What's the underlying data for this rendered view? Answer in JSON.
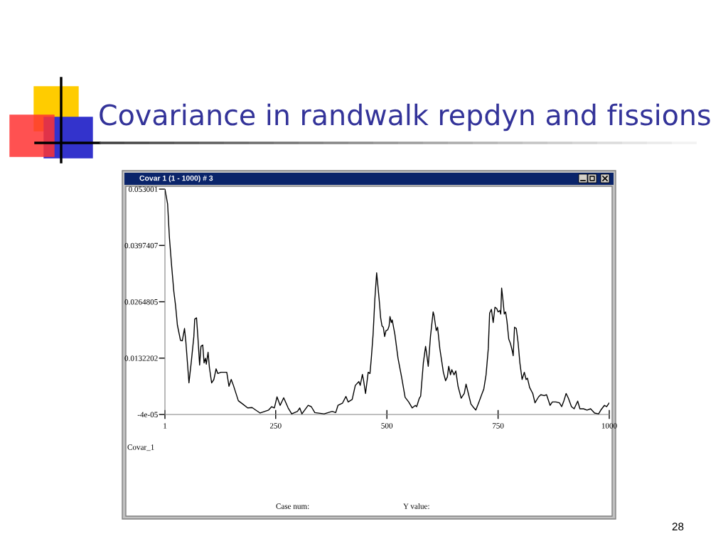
{
  "chart_data": {
    "type": "line",
    "title": "Covariance in randwalk repdyn and fissions",
    "subtitle": "Covar 1 (1 - 1000) # 3",
    "annotations": [
      "Case num:",
      "Y value:",
      "28"
    ],
    "series": [
      {
        "name": "Covar_1",
        "color": "#000000",
        "x": [
          1,
          7,
          11,
          16,
          21,
          25,
          29,
          36,
          40,
          45,
          48,
          55,
          60,
          66,
          68,
          72,
          75,
          79,
          82,
          86,
          89,
          92,
          94,
          98,
          101,
          106,
          111,
          116,
          120,
          127,
          140,
          145,
          150,
          155,
          166,
          176,
          187,
          197,
          205,
          215,
          234,
          241,
          247,
          253,
          260,
          268,
          278,
          286,
          299,
          304,
          309,
          323,
          330,
          338,
          359,
          377,
          385,
          390,
          400,
          408,
          413,
          422,
          429,
          437,
          440,
          445,
          448,
          452,
          458,
          462,
          465,
          469,
          473,
          477,
          479,
          483,
          486,
          489,
          492,
          495,
          498,
          502,
          505,
          507,
          510,
          512,
          518,
          525,
          533,
          541,
          549,
          557,
          564,
          567,
          573,
          576,
          582,
          587,
          589,
          593,
          598,
          604,
          606,
          611,
          614,
          619,
          627,
          632,
          636,
          639,
          643,
          646,
          651,
          655,
          660,
          667,
          674,
          678,
          682,
          689,
          695,
          700,
          707,
          713,
          718,
          723,
          728,
          731,
          735,
          739,
          743,
          747,
          750,
          754,
          756,
          758,
          761,
          764,
          767,
          770,
          774,
          778,
          782,
          784,
          787,
          791,
          795,
          799,
          804,
          809,
          813,
          816,
          821,
          828,
          833,
          841,
          846,
          854,
          859,
          867,
          872,
          880,
          888,
          893,
          898,
          903,
          908,
          915,
          921,
          929,
          934,
          942,
          950,
          958,
          967,
          976,
          981,
          989,
          994,
          1000
        ],
        "values": [
          0.053,
          0.0495,
          0.0417,
          0.035,
          0.0289,
          0.0255,
          0.021,
          0.0174,
          0.0173,
          0.0202,
          0.0171,
          0.0074,
          0.0121,
          0.0183,
          0.0224,
          0.0227,
          0.0183,
          0.0116,
          0.016,
          0.0163,
          0.0121,
          0.0132,
          0.0118,
          0.0146,
          0.011,
          0.0074,
          0.0082,
          0.0107,
          0.0096,
          0.0099,
          0.0099,
          0.0066,
          0.0082,
          0.0068,
          0.0032,
          0.0024,
          0.0015,
          0.0016,
          0.001,
          0.0003,
          0.001,
          0.0018,
          0.0015,
          0.0041,
          0.0021,
          0.0039,
          0.0015,
          0.0001,
          0.0007,
          0.0015,
          0.0001,
          0.0021,
          0.0018,
          0.0004,
          0.0001,
          0.0007,
          0.0004,
          0.0021,
          0.0026,
          0.0042,
          0.0029,
          0.0035,
          0.0068,
          0.0077,
          0.0068,
          0.0094,
          0.0077,
          0.0049,
          0.0099,
          0.0096,
          0.0132,
          0.0188,
          0.0272,
          0.0333,
          0.0311,
          0.0266,
          0.0227,
          0.0208,
          0.0205,
          0.0183,
          0.0197,
          0.0199,
          0.0208,
          0.023,
          0.0216,
          0.0222,
          0.0188,
          0.0132,
          0.0088,
          0.004,
          0.0029,
          0.0015,
          0.0021,
          0.0018,
          0.0038,
          0.0043,
          0.0121,
          0.016,
          0.0146,
          0.0113,
          0.0183,
          0.0241,
          0.0233,
          0.0197,
          0.0205,
          0.0155,
          0.0099,
          0.0079,
          0.0088,
          0.0113,
          0.0093,
          0.0105,
          0.0093,
          0.0102,
          0.0066,
          0.0038,
          0.0049,
          0.0071,
          0.0054,
          0.0024,
          0.0016,
          0.001,
          0.0029,
          0.0046,
          0.006,
          0.0093,
          0.0155,
          0.0238,
          0.0247,
          0.0216,
          0.0252,
          0.0249,
          0.0241,
          0.0244,
          0.0236,
          0.0297,
          0.0269,
          0.0236,
          0.0241,
          0.0219,
          0.0177,
          0.0166,
          0.0149,
          0.0138,
          0.0205,
          0.0202,
          0.0169,
          0.0121,
          0.0082,
          0.0099,
          0.0082,
          0.0085,
          0.0063,
          0.0049,
          0.0027,
          0.0041,
          0.0046,
          0.0044,
          0.0046,
          0.0021,
          0.0029,
          0.0029,
          0.0027,
          0.0018,
          0.0032,
          0.0049,
          0.0038,
          0.0018,
          0.0013,
          0.0031,
          0.0013,
          0.0013,
          0.001,
          0.0013,
          0.0003,
          0.0001,
          0.001,
          0.0021,
          0.0018,
          0.0027
        ]
      }
    ],
    "xlim": [
      1,
      1000
    ],
    "xticks": [
      1,
      250,
      500,
      750,
      1000
    ],
    "ylim": [
      -4e-05,
      0.053001
    ],
    "yticks": [
      -4e-05,
      0.0132202,
      0.0264805,
      0.0397407,
      0.053001
    ],
    "grid": false,
    "line_style": "solid"
  }
}
